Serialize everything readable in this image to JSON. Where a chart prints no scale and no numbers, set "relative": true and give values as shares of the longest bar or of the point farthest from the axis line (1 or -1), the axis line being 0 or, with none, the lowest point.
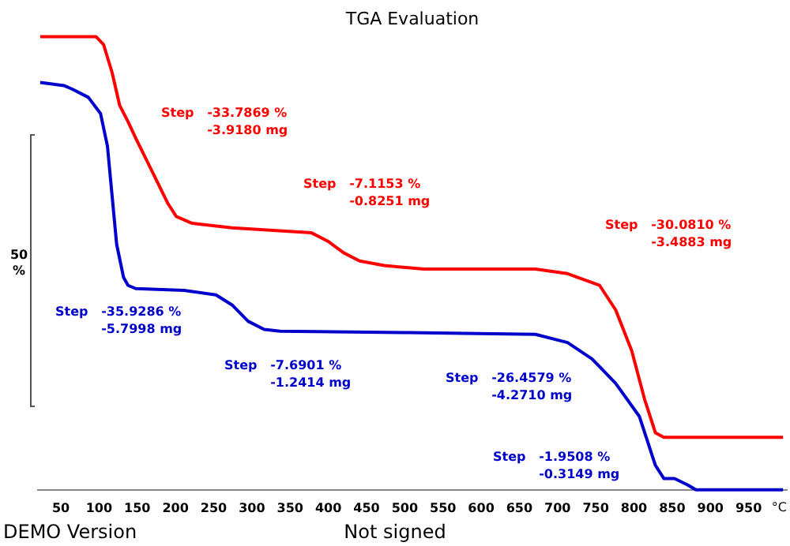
{
  "chart_data": {
    "type": "line",
    "title": "TGA Evaluation",
    "xlabel": "°C",
    "relative": true,
    "xlim": [
      20,
      1000
    ],
    "xticks": [
      50,
      100,
      150,
      200,
      250,
      300,
      350,
      400,
      450,
      500,
      550,
      600,
      650,
      700,
      750,
      800,
      850,
      900,
      950
    ],
    "series": [
      {
        "color": "#ff0000",
        "x": [
          23,
          54,
          96,
          106,
          117,
          127,
          138,
          148,
          169,
          190,
          201,
          222,
          274,
          378,
          399,
          420,
          441,
          473,
          525,
          671,
          713,
          755,
          776,
          797,
          814,
          828,
          839,
          881,
          995
        ],
        "values": [
          1,
          1,
          1,
          0.982,
          0.921,
          0.848,
          0.812,
          0.776,
          0.704,
          0.632,
          0.603,
          0.588,
          0.578,
          0.567,
          0.549,
          0.523,
          0.505,
          0.495,
          0.487,
          0.487,
          0.477,
          0.451,
          0.397,
          0.307,
          0.199,
          0.126,
          0.116,
          0.116,
          0.116
        ]
      },
      {
        "color": "#0000cc",
        "x": [
          23,
          54,
          65,
          86,
          102,
          111,
          117,
          123,
          132,
          138,
          148,
          211,
          253,
          274,
          295,
          316,
          337,
          504,
          671,
          713,
          745,
          776,
          807,
          828,
          839,
          853,
          870,
          881,
          995
        ],
        "values": [
          0.899,
          0.892,
          0.884,
          0.866,
          0.83,
          0.758,
          0.65,
          0.542,
          0.469,
          0.451,
          0.444,
          0.44,
          0.43,
          0.408,
          0.372,
          0.354,
          0.35,
          0.347,
          0.343,
          0.325,
          0.289,
          0.235,
          0.162,
          0.054,
          0.025,
          0.025,
          0.011,
          0,
          0
        ]
      }
    ],
    "annotations": [
      "Step   -33.7869 %\n-3.9180 mg",
      "Step   -7.1153 %\n-0.8251 mg",
      "Step   -30.0810 %\n-3.4883 mg",
      "Step   -35.9286 %\n-5.7998 mg",
      "Step   -7.6901 %\n-1.2414 mg",
      "Step   -26.4579 %\n-4.2710 mg",
      "Step   -1.9508 %\n-0.3149 mg",
      "50 %",
      "DEMO Version",
      "Not signed"
    ],
    "legend": false,
    "grid": false,
    "marker": "none",
    "line_style": "solid"
  }
}
